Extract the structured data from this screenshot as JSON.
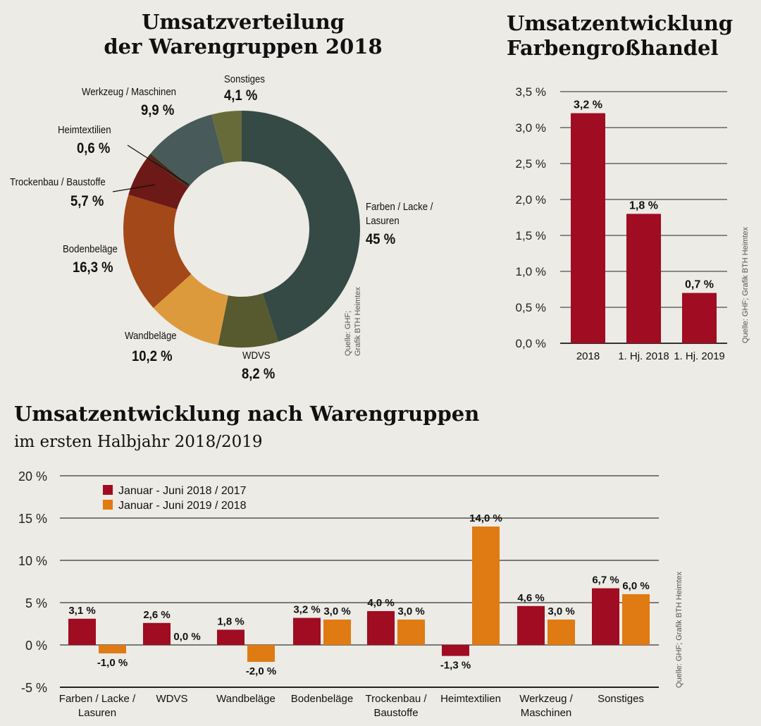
{
  "donut": {
    "chart_data": {
      "type": "pie",
      "variant": "donut",
      "title": "Umsatzverteilung der Warengruppen 2018",
      "title_lines": [
        "Umsatzverteilung",
        "der Warengruppen 2018"
      ],
      "slices": [
        {
          "label": "Farben / Lacke / Lasuren",
          "label_lines": [
            "Farben / Lacke /",
            "Lasuren"
          ],
          "value": 45,
          "value_label": "45 %",
          "color": "#354945"
        },
        {
          "label": "WDVS",
          "value": 8.2,
          "value_label": "8,2 %",
          "color": "#57592e"
        },
        {
          "label": "Wandbeläge",
          "value": 10.2,
          "value_label": "10,2 %",
          "color": "#dc9a3d"
        },
        {
          "label": "Bodenbeläge",
          "value": 16.3,
          "value_label": "16,3 %",
          "color": "#a34819"
        },
        {
          "label": "Trockenbau / Baustoffe",
          "value": 5.7,
          "value_label": "5,7 %",
          "color": "#6c1917"
        },
        {
          "label": "Heimtextilien",
          "value": 0.6,
          "value_label": "0,6 %",
          "color": "#4a2b1a"
        },
        {
          "label": "Werkzeug / Maschinen",
          "value": 9.9,
          "value_label": "9,9 %",
          "color": "#485a59"
        },
        {
          "label": "Sonstiges",
          "value": 4.1,
          "value_label": "4,1 %",
          "color": "#676b3a"
        }
      ],
      "source": "Quelle: GHF;",
      "source2": "Grafik BTH Heimtex"
    }
  },
  "trend": {
    "chart_data": {
      "type": "bar",
      "title": "Umsatzentwicklung Farbengroßhandel",
      "title_lines": [
        "Umsatzentwicklung",
        "Farbengroßhandel"
      ],
      "categories": [
        "2018",
        "1. Hj. 2018",
        "1. Hj. 2019"
      ],
      "values": [
        3.2,
        1.8,
        0.7
      ],
      "data_labels": [
        "3,2 %",
        "1,8 %",
        "0,7 %"
      ],
      "ylim": [
        0,
        3.5
      ],
      "yticks": [
        "0,0 %",
        "0,5 %",
        "1,0 %",
        "1,5 %",
        "2,0 %",
        "2,5 %",
        "3,0 %",
        "3,5 %"
      ],
      "grid": true,
      "color": "#a00c22",
      "source": "Quelle: GHF; Grafik BTH Heimtex"
    }
  },
  "groups": {
    "chart_data": {
      "type": "bar",
      "title": "Umsatzentwicklung nach Warengruppen",
      "subtitle": "im ersten Halbjahr 2018/2019",
      "categories": [
        [
          "Farben / Lacke /",
          "Lasuren"
        ],
        [
          "WDVS"
        ],
        [
          "Wandbeläge"
        ],
        [
          "Bodenbeläge"
        ],
        [
          "Trockenbau /",
          "Baustoffe"
        ],
        [
          "Heimtextilien"
        ],
        [
          "Werkzeug /",
          "Maschinen"
        ],
        [
          "Sonstiges"
        ]
      ],
      "series": [
        {
          "name": "Januar - Juni 2018 / 2017",
          "color": "#a00c22",
          "values": [
            3.1,
            2.6,
            1.8,
            3.2,
            4.0,
            -1.3,
            4.6,
            6.7
          ],
          "data_labels": [
            "3,1 %",
            "2,6 %",
            "1,8 %",
            "3,2 %",
            "4,0 %",
            "-1,3 %",
            "4,6 %",
            "6,7 %"
          ]
        },
        {
          "name": "Januar - Juni 2019 / 2018",
          "color": "#e07a12",
          "values": [
            -1.0,
            0.0,
            -2.0,
            3.0,
            3.0,
            14.0,
            3.0,
            6.0
          ],
          "data_labels": [
            "-1,0 %",
            "0,0 %",
            "-2,0 %",
            "3,0 %",
            "3,0 %",
            "14,0 %",
            "3,0 %",
            "6,0 %"
          ]
        }
      ],
      "ylim": [
        -5,
        20
      ],
      "yticks": [
        "-5 %",
        "0 %",
        "5 %",
        "10 %",
        "15 %",
        "20 %"
      ],
      "grid": true,
      "legend": "top-left",
      "source": "Quelle: GHF; Grafik BTH Heimtex"
    }
  }
}
